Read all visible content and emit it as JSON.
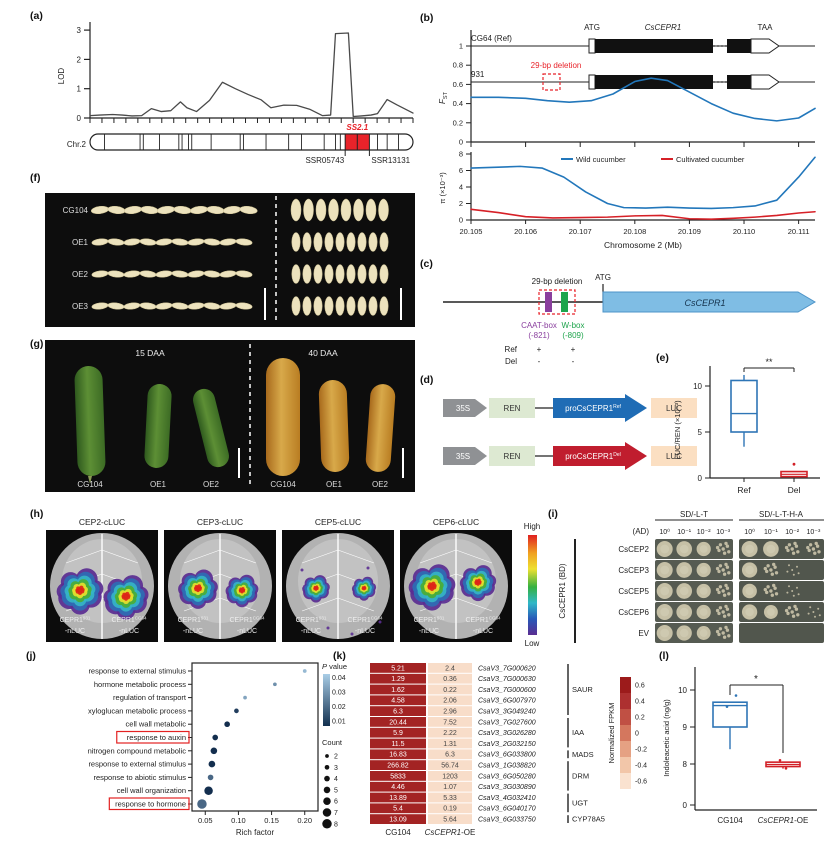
{
  "panel_labels": {
    "a": "(a)",
    "b": "(b)",
    "c": "(c)",
    "d": "(d)",
    "e": "(e)",
    "f": "(f)",
    "g": "(g)",
    "h": "(h)",
    "i": "(i)",
    "j": "(j)",
    "k": "(k)",
    "l": "(l)"
  },
  "colors": {
    "accent_red": "#e8232a",
    "wild_blue": "#2277bb",
    "cult_red": "#d62027",
    "box_blue": "#2e75b6",
    "box_red": "#d22027",
    "heat_dark": "#a32323",
    "heat_light": "#f8ddc9",
    "caat_purple": "#8a3f9e",
    "wbox_green": "#1ea44c",
    "gene_arrow_blue": "#7fbde4",
    "construct_blue": "#1f6cb5",
    "construct_red": "#c01d2e"
  },
  "a": {
    "ylabel": "LOD",
    "yticks": [
      "0",
      "1",
      "2",
      "3"
    ],
    "chr": "Chr.2",
    "locus": "SS2.1",
    "marker_left": "SSR05743",
    "marker_right": "SSR13131"
  },
  "b": {
    "row1": "CG64 (Ref)",
    "row2": "931",
    "deletion": "29-bp deletion",
    "atg": "ATG",
    "gene": "CsCEPR1",
    "taa": "TAA",
    "fst_f": "F",
    "fst_sub": "ST",
    "fst_ticks": [
      "1",
      "0.8",
      "0.6",
      "0.4",
      "0.2",
      "0"
    ],
    "pi_label": "π (×10⁻³)",
    "pi_ticks": [
      "0",
      "2",
      "4",
      "6",
      "8"
    ],
    "legend_wild": "Wild cucumber",
    "legend_cult": "Cultivated cucumber",
    "xticks": [
      "20.105",
      "20.106",
      "20.107",
      "20.108",
      "20.109",
      "20.110",
      "20.111"
    ],
    "xlabel": "Chromosome 2 (Mb)"
  },
  "c": {
    "deletion": "29-bp deletion",
    "atg": "ATG",
    "gene": "CsCEPR1",
    "caat": "CAAT-box",
    "caat_pos": "(-821)",
    "wbox": "W-box",
    "wbox_pos": "(-809)",
    "ref": "Ref",
    "del": "Del",
    "plus": "+",
    "minus": "-"
  },
  "d": {
    "p35s": "35S",
    "ren": "REN",
    "luc": "LUC",
    "pro": "proCsCEPR1",
    "sup_ref": "Ref",
    "sup_del": "Del"
  },
  "e": {
    "ylabel": "LUC/REN (×10⁻³)",
    "yticks": [
      "0",
      "5",
      "10"
    ],
    "cats": [
      "Ref",
      "Del"
    ],
    "sig": "**"
  },
  "f": {
    "rows": [
      "CG104",
      "OE1",
      "OE2",
      "OE3"
    ]
  },
  "g": {
    "title_left": "15 DAA",
    "title_right": "40 DAA",
    "labels": [
      "CG104",
      "OE1",
      "OE2"
    ]
  },
  "h": {
    "titles": [
      "CEP2-cLUC",
      "CEP3-cLUC",
      "CEP5-cLUC",
      "CEP6-cLUC"
    ],
    "receptor": "CEPR1",
    "sup1": "931",
    "sup2": "CG64",
    "nluc": "-nLUC",
    "high": "High",
    "low": "Low"
  },
  "i": {
    "ad": "(AD)",
    "bd": "CsCEPR1 (BD)",
    "media": [
      "SD/-L-T",
      "SD/-L-T-H-A"
    ],
    "dilutions": [
      "10⁰",
      "10⁻¹",
      "10⁻²",
      "10⁻³"
    ],
    "rows": [
      "CsCEP2",
      "CsCEP3",
      "CsCEP5",
      "CsCEP6",
      "EV"
    ],
    "spots_left": [
      [
        1,
        0.95,
        0.75,
        0.55
      ],
      [
        1,
        0.95,
        0.75,
        0.5
      ],
      [
        1,
        0.95,
        0.75,
        0.55
      ],
      [
        1,
        0.95,
        0.75,
        0.5
      ],
      [
        1,
        0.9,
        0.7,
        0.45
      ]
    ],
    "spots_right": [
      [
        1,
        0.95,
        0.6,
        0.28
      ],
      [
        0.9,
        0.5,
        0.18,
        0
      ],
      [
        0.8,
        0.32,
        0.08,
        0
      ],
      [
        0.9,
        0.7,
        0.28,
        0.08
      ],
      [
        0,
        0,
        0,
        0
      ]
    ]
  },
  "chart_data": [
    {
      "id": "lod",
      "type": "line",
      "ylabel": "LOD",
      "ylim": [
        0,
        3.2
      ],
      "points": [
        [
          0,
          0.08
        ],
        [
          0.03,
          0.1
        ],
        [
          0.07,
          0.12
        ],
        [
          0.1,
          0.1
        ],
        [
          0.13,
          0.07
        ],
        [
          0.16,
          0.08
        ],
        [
          0.19,
          0.32
        ],
        [
          0.22,
          0.22
        ],
        [
          0.25,
          0.25
        ],
        [
          0.28,
          0.55
        ],
        [
          0.3,
          0.35
        ],
        [
          0.33,
          0.22
        ],
        [
          0.37,
          0.6
        ],
        [
          0.41,
          1.22
        ],
        [
          0.45,
          1.0
        ],
        [
          0.49,
          0.8
        ],
        [
          0.53,
          0.62
        ],
        [
          0.56,
          0.35
        ],
        [
          0.6,
          0.44
        ],
        [
          0.64,
          0.43
        ],
        [
          0.68,
          0.3
        ],
        [
          0.72,
          0.08
        ],
        [
          0.745,
          0.1
        ],
        [
          0.76,
          2.88
        ],
        [
          0.8,
          2.9
        ],
        [
          0.815,
          0.05
        ],
        [
          0.84,
          0.07
        ],
        [
          0.87,
          0.1
        ],
        [
          0.89,
          0.15
        ],
        [
          0.92,
          0.63
        ],
        [
          0.95,
          0.45
        ],
        [
          1,
          0.17
        ]
      ],
      "chr_bands": [
        0.045,
        0.155,
        0.165,
        0.215,
        0.275,
        0.285,
        0.305,
        0.315,
        0.375,
        0.465,
        0.475,
        0.545,
        0.615,
        0.655,
        0.725,
        0.76,
        0.775,
        0.89,
        0.92,
        0.955
      ],
      "red_region": [
        0.79,
        0.865
      ]
    },
    {
      "id": "fst",
      "type": "line",
      "ylabel": "FST",
      "ylim": [
        0,
        1
      ],
      "xlim": [
        20.105,
        20.1113
      ],
      "points": [
        [
          20.105,
          0.465
        ],
        [
          20.1055,
          0.465
        ],
        [
          20.106,
          0.455
        ],
        [
          20.1064,
          0.43
        ],
        [
          20.1068,
          0.415
        ],
        [
          20.1072,
          0.43
        ],
        [
          20.1076,
          0.5
        ],
        [
          20.108,
          0.63
        ],
        [
          20.1083,
          0.665
        ],
        [
          20.1086,
          0.64
        ],
        [
          20.109,
          0.52
        ],
        [
          20.1094,
          0.4
        ],
        [
          20.1098,
          0.3
        ],
        [
          20.1102,
          0.245
        ],
        [
          20.1106,
          0.22
        ],
        [
          20.111,
          0.25
        ],
        [
          20.1113,
          0.35
        ]
      ]
    },
    {
      "id": "pi",
      "type": "line",
      "ylabel": "π (×10⁻³)",
      "ylim": [
        0,
        8
      ],
      "xlim": [
        20.105,
        20.1113
      ],
      "xlabel": "Chromosome 2 (Mb)",
      "series": [
        {
          "name": "Wild cucumber",
          "color": "#2277bb",
          "points": [
            [
              20.105,
              6.3
            ],
            [
              20.1055,
              6.4
            ],
            [
              20.1059,
              6.5
            ],
            [
              20.1063,
              6.3
            ],
            [
              20.1067,
              5.2
            ],
            [
              20.1071,
              3.4
            ],
            [
              20.1075,
              2.0
            ],
            [
              20.1078,
              1.5
            ],
            [
              20.1082,
              1.45
            ],
            [
              20.1086,
              1.55
            ],
            [
              20.109,
              1.45
            ],
            [
              20.1094,
              1.4
            ],
            [
              20.1098,
              1.5
            ],
            [
              20.1102,
              1.7
            ],
            [
              20.1106,
              2.4
            ],
            [
              20.111,
              5.2
            ],
            [
              20.1113,
              7.6
            ]
          ]
        },
        {
          "name": "Cultivated cucumber",
          "color": "#d62027",
          "points": [
            [
              20.105,
              1.3
            ],
            [
              20.1055,
              0.9
            ],
            [
              20.106,
              0.4
            ],
            [
              20.1065,
              0.25
            ],
            [
              20.107,
              0.3
            ],
            [
              20.1075,
              0.35
            ],
            [
              20.108,
              0.5
            ],
            [
              20.1085,
              0.55
            ],
            [
              20.109,
              0.15
            ],
            [
              20.1094,
              0.1
            ],
            [
              20.1098,
              0.2
            ],
            [
              20.1102,
              0.35
            ],
            [
              20.1106,
              0.55
            ],
            [
              20.111,
              0.85
            ],
            [
              20.1113,
              1.0
            ]
          ]
        }
      ]
    },
    {
      "id": "luc_ren",
      "type": "box",
      "ylabel": "LUC/REN (×10⁻³)",
      "categories": [
        "Ref",
        "Del"
      ],
      "sig": "**",
      "ylim": [
        0,
        12
      ],
      "boxes": [
        {
          "name": "Ref",
          "color": "#2e75b6",
          "q1": 5,
          "q3": 10.6,
          "median": 7,
          "whisker_low": 3.4,
          "whisker_high": 11.2
        },
        {
          "name": "Del",
          "color": "#d22027",
          "q1": 0.15,
          "q3": 0.7,
          "median": 0.4,
          "outliers": [
            1.5
          ]
        }
      ]
    },
    {
      "id": "go",
      "type": "scatter",
      "xlabel": "Rich factor",
      "xticks": [
        "0.05",
        "0.10",
        "0.15",
        "0.20"
      ],
      "legend_p": "P value",
      "p_ticks": [
        "0.04",
        "0.03",
        "0.02",
        "0.01"
      ],
      "legend_count": "Count",
      "count_ticks": [
        2,
        3,
        4,
        5,
        6,
        7,
        8
      ],
      "rows": [
        {
          "label": "response to external stimulus",
          "rich": 0.2,
          "count": 2,
          "p": 0.04
        },
        {
          "label": "hormone metabolic process",
          "rich": 0.155,
          "count": 2,
          "p": 0.03
        },
        {
          "label": "regulation of transport",
          "rich": 0.11,
          "count": 2,
          "p": 0.035
        },
        {
          "label": "xyloglucan metabolic process",
          "rich": 0.097,
          "count": 3,
          "p": 0.01
        },
        {
          "label": "cell wall metabolic",
          "rich": 0.083,
          "count": 4,
          "p": 0.006
        },
        {
          "label": "response to auxin",
          "rich": 0.065,
          "count": 4,
          "p": 0.006,
          "boxed": true
        },
        {
          "label": "nitrogen compound metabolic",
          "rich": 0.063,
          "count": 5,
          "p": 0.006
        },
        {
          "label": "response to external stimulus",
          "rich": 0.06,
          "count": 5,
          "p": 0.006
        },
        {
          "label": "response to abiotic stimulus",
          "rich": 0.058,
          "count": 4,
          "p": 0.02
        },
        {
          "label": "cell wall organization",
          "rich": 0.055,
          "count": 7,
          "p": 0.006
        },
        {
          "label": "response to hormone",
          "rich": 0.045,
          "count": 8,
          "p": 0.02,
          "boxed": true
        }
      ]
    },
    {
      "id": "fpkm",
      "type": "heatmap",
      "columns": [
        "CG104",
        "CsCEPR1-OE"
      ],
      "scale_label": "Normalized FPKM",
      "scale_ticks": [
        "0.6",
        "0.4",
        "0.2",
        "0",
        "-0.2",
        "-0.4",
        "-0.6"
      ],
      "rows": [
        [
          "5.21",
          "2.4",
          "CsaV3_7G000620"
        ],
        [
          "1.29",
          "0.36",
          "CsaV3_7G000630"
        ],
        [
          "1.62",
          "0.22",
          "CsaV3_7G000600"
        ],
        [
          "4.58",
          "2.06",
          "CsaV3_6G007970"
        ],
        [
          "6.3",
          "2.96",
          "CsaV3_3G049240"
        ],
        [
          "20.44",
          "7.52",
          "CsaV3_7G027600"
        ],
        [
          "5.9",
          "2.22",
          "CsaV3_3G026280"
        ],
        [
          "11.5",
          "1.31",
          "CsaV3_2G032150"
        ],
        [
          "16.83",
          "6.3",
          "CsaV3_6G033800"
        ],
        [
          "266.82",
          "56.74",
          "CsaV3_1G038820"
        ],
        [
          "5833",
          "1203",
          "CsaV3_6G050280"
        ],
        [
          "4.46",
          "1.07",
          "CsaV3_3G030890"
        ],
        [
          "13.89",
          "5.33",
          "CsaV3_4G032410"
        ],
        [
          "5.4",
          "0.19",
          "CsaV3_6G040170"
        ],
        [
          "13.09",
          "5.64",
          "CsaV3_6G033750"
        ]
      ],
      "groups": [
        {
          "name": "SAUR",
          "from": 0,
          "to": 4
        },
        {
          "name": "IAA",
          "from": 5,
          "to": 7
        },
        {
          "name": "MADS",
          "from": 8,
          "to": 8
        },
        {
          "name": "DRM",
          "from": 9,
          "to": 11
        },
        {
          "name": "UGT",
          "from": 12,
          "to": 13
        },
        {
          "name": "CYP78A5",
          "from": 14,
          "to": 14
        }
      ]
    },
    {
      "id": "iaa",
      "type": "box",
      "ylabel": "Indoleacetic acid (ng/g)",
      "categories": [
        "CG104",
        "CsCEPR1-OE"
      ],
      "yticks": [
        "0",
        "8",
        "9",
        "10"
      ],
      "sig": "*",
      "boxes": [
        {
          "name": "CG104",
          "color": "#2e75b6",
          "q1": 9.0,
          "q3": 9.67,
          "median": 9.58,
          "whisker_low": 8.4,
          "points": [
            9.55,
            9.85
          ]
        },
        {
          "name": "CsCEPR1-OE",
          "color": "#d22027",
          "q1": 7.5,
          "q3": 8.05,
          "median": 7.9,
          "whisker_low": 7.1,
          "points": [
            8.1,
            7.15
          ]
        }
      ]
    }
  ]
}
